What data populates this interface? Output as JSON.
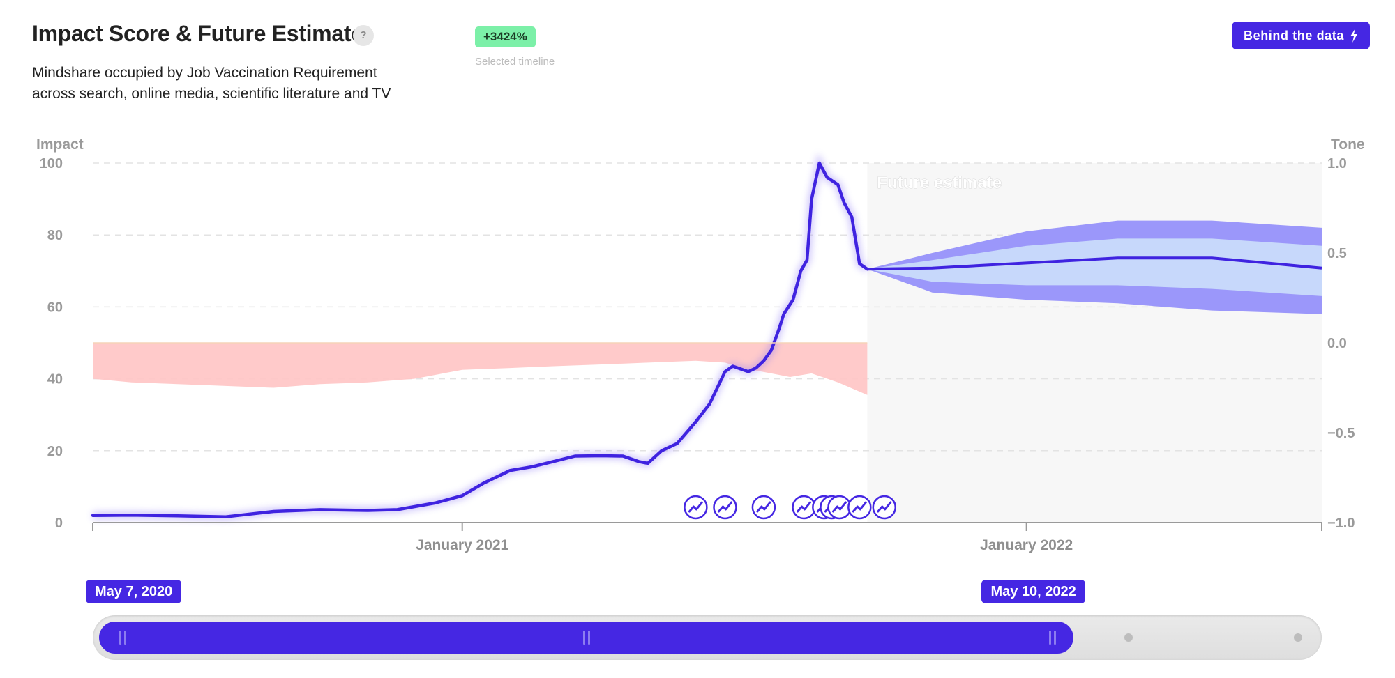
{
  "header": {
    "title": "Impact Score & Future Estimate",
    "help_label": "?",
    "subtitle": "Mindshare occupied by Job Vaccination Requirement across search, online media, scientific literature and TV",
    "change_badge": "+3424%",
    "change_caption": "Selected timeline",
    "behind_button": "Behind the data",
    "behind_icon": "bolt-icon"
  },
  "colors": {
    "accent": "#4527e3",
    "impact_line": "#3f23e0",
    "tone_fill": "#ffc4c4",
    "forecast_outer": "#9b97fa",
    "forecast_inner": "#c7d8fb",
    "forecast_bg": "#f7f7f7",
    "badge_green": "#7cf0a8"
  },
  "slider": {
    "start_label": "May 7, 2020",
    "end_label": "May 10, 2022",
    "start_fraction": 0.0,
    "end_fraction": 0.795
  },
  "chart_data": {
    "type": "line",
    "title": "Impact Score & Future Estimate",
    "ylabel": "Impact",
    "y2label": "Tone",
    "ylim": [
      0,
      100
    ],
    "y2lim": [
      -1.0,
      1.0
    ],
    "yticks": [
      "0",
      "20",
      "40",
      "60",
      "80",
      "100"
    ],
    "y2ticks": [
      "−1.0",
      "−0.5",
      "0.0",
      "0.5",
      "1.0"
    ],
    "x_range": [
      "2020-05-07",
      "2022-07-11"
    ],
    "xticks": [
      {
        "date": "2021-01-01",
        "label": "January 2021"
      },
      {
        "date": "2022-01-01",
        "label": "January 2022"
      }
    ],
    "grid": true,
    "forecast_label": "Future estimate",
    "forecast_start": "2021-09-20",
    "series": [
      {
        "name": "Impact",
        "x": [
          "2020-05-07",
          "2020-06-01",
          "2020-07-01",
          "2020-08-01",
          "2020-09-01",
          "2020-10-01",
          "2020-11-01",
          "2020-11-20",
          "2020-12-15",
          "2021-01-01",
          "2021-01-15",
          "2021-02-01",
          "2021-02-15",
          "2021-03-01",
          "2021-03-15",
          "2021-04-01",
          "2021-04-15",
          "2021-04-25",
          "2021-05-01",
          "2021-05-10",
          "2021-05-20",
          "2021-06-01",
          "2021-06-10",
          "2021-06-20",
          "2021-06-25",
          "2021-07-05",
          "2021-07-10",
          "2021-07-15",
          "2021-07-20",
          "2021-07-25",
          "2021-07-28",
          "2021-08-03",
          "2021-08-08",
          "2021-08-12",
          "2021-08-15",
          "2021-08-20",
          "2021-08-25",
          "2021-09-01",
          "2021-09-05",
          "2021-09-10",
          "2021-09-15",
          "2021-09-20"
        ],
        "y": [
          2,
          2.1,
          1.9,
          1.6,
          3.1,
          3.6,
          3.4,
          3.6,
          5.5,
          7.5,
          11,
          14.5,
          15.5,
          17,
          18.5,
          18.6,
          18.5,
          17,
          16.5,
          20,
          22,
          28,
          33,
          42,
          43.5,
          42,
          43,
          45,
          48,
          54,
          58,
          62,
          70,
          73,
          90,
          100,
          96,
          94,
          89,
          85,
          72,
          70.5
        ]
      },
      {
        "name": "Tone",
        "x": [
          "2020-05-07",
          "2020-06-01",
          "2020-07-01",
          "2020-08-01",
          "2020-09-01",
          "2020-10-01",
          "2020-11-01",
          "2020-12-01",
          "2021-01-01",
          "2021-02-01",
          "2021-03-01",
          "2021-04-01",
          "2021-05-01",
          "2021-06-01",
          "2021-06-20",
          "2021-07-01",
          "2021-07-20",
          "2021-08-01",
          "2021-08-15",
          "2021-09-01",
          "2021-09-20"
        ],
        "y": [
          -0.2,
          -0.22,
          -0.23,
          -0.24,
          -0.25,
          -0.23,
          -0.22,
          -0.2,
          -0.15,
          -0.14,
          -0.13,
          -0.12,
          -0.11,
          -0.1,
          -0.11,
          -0.14,
          -0.17,
          -0.19,
          -0.17,
          -0.22,
          -0.29
        ]
      },
      {
        "name": "Forecast",
        "x": [
          "2021-09-20",
          "2021-11-01",
          "2022-01-01",
          "2022-03-01",
          "2022-05-01",
          "2022-07-11"
        ],
        "y": [
          70.5,
          70.8,
          72.2,
          73.6,
          73.6,
          70.8
        ],
        "inner_band": {
          "low": [
            70.5,
            67,
            66,
            66,
            65,
            63
          ],
          "high": [
            70.5,
            73,
            77,
            79,
            79,
            77
          ]
        },
        "outer_band": {
          "low": [
            70.5,
            64,
            62,
            61,
            59,
            58
          ],
          "high": [
            70.5,
            75,
            81,
            84,
            84,
            82
          ]
        }
      }
    ],
    "events": [
      "2021-06-01",
      "2021-06-20",
      "2021-07-15",
      "2021-08-10",
      "2021-08-23",
      "2021-08-28",
      "2021-09-02",
      "2021-09-15",
      "2021-10-01"
    ]
  }
}
